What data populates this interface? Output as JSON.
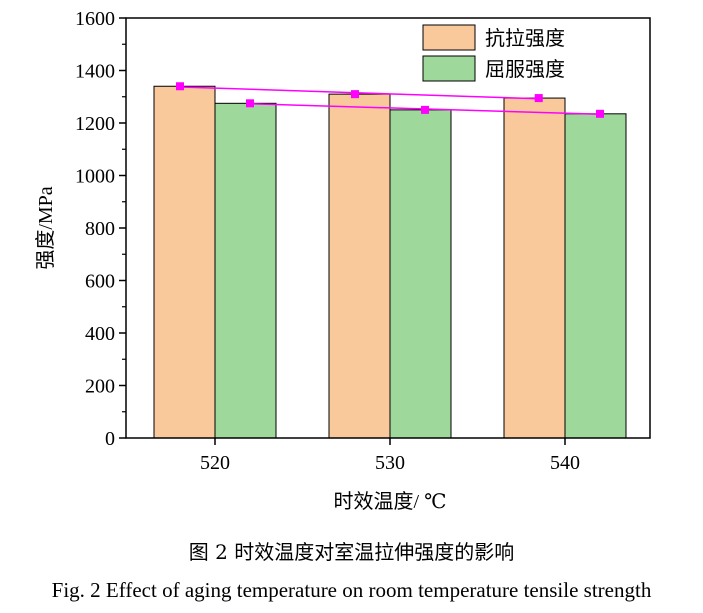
{
  "chart_data": {
    "type": "bar",
    "categories": [
      "520",
      "530",
      "540"
    ],
    "series": [
      {
        "name": "抗拉强度",
        "values": [
          1340,
          1310,
          1295
        ],
        "color": "#f9c89b"
      },
      {
        "name": "屈服强度",
        "values": [
          1275,
          1250,
          1235
        ],
        "color": "#9fd89b"
      }
    ],
    "trendlines": [
      {
        "series": "抗拉强度",
        "points": [
          [
            518,
            1340
          ],
          [
            528,
            1310
          ],
          [
            538.5,
            1295
          ]
        ],
        "color": "#ff00ff"
      },
      {
        "series": "屈服强度",
        "points": [
          [
            522,
            1275
          ],
          [
            532,
            1250
          ],
          [
            542,
            1235
          ]
        ],
        "color": "#ff00ff"
      }
    ],
    "xlabel": "时效温度/ ℃",
    "ylabel": "强度/MPa",
    "ylim": [
      0,
      1600
    ],
    "yticks": [
      0,
      200,
      400,
      600,
      800,
      1000,
      1200,
      1400,
      1600
    ],
    "legend_position": "top-right",
    "grid": false
  },
  "caption": {
    "chinese": "图 2  时效温度对室温拉伸强度的影响",
    "english": "Fig. 2 Effect of aging temperature on room temperature tensile strength"
  }
}
